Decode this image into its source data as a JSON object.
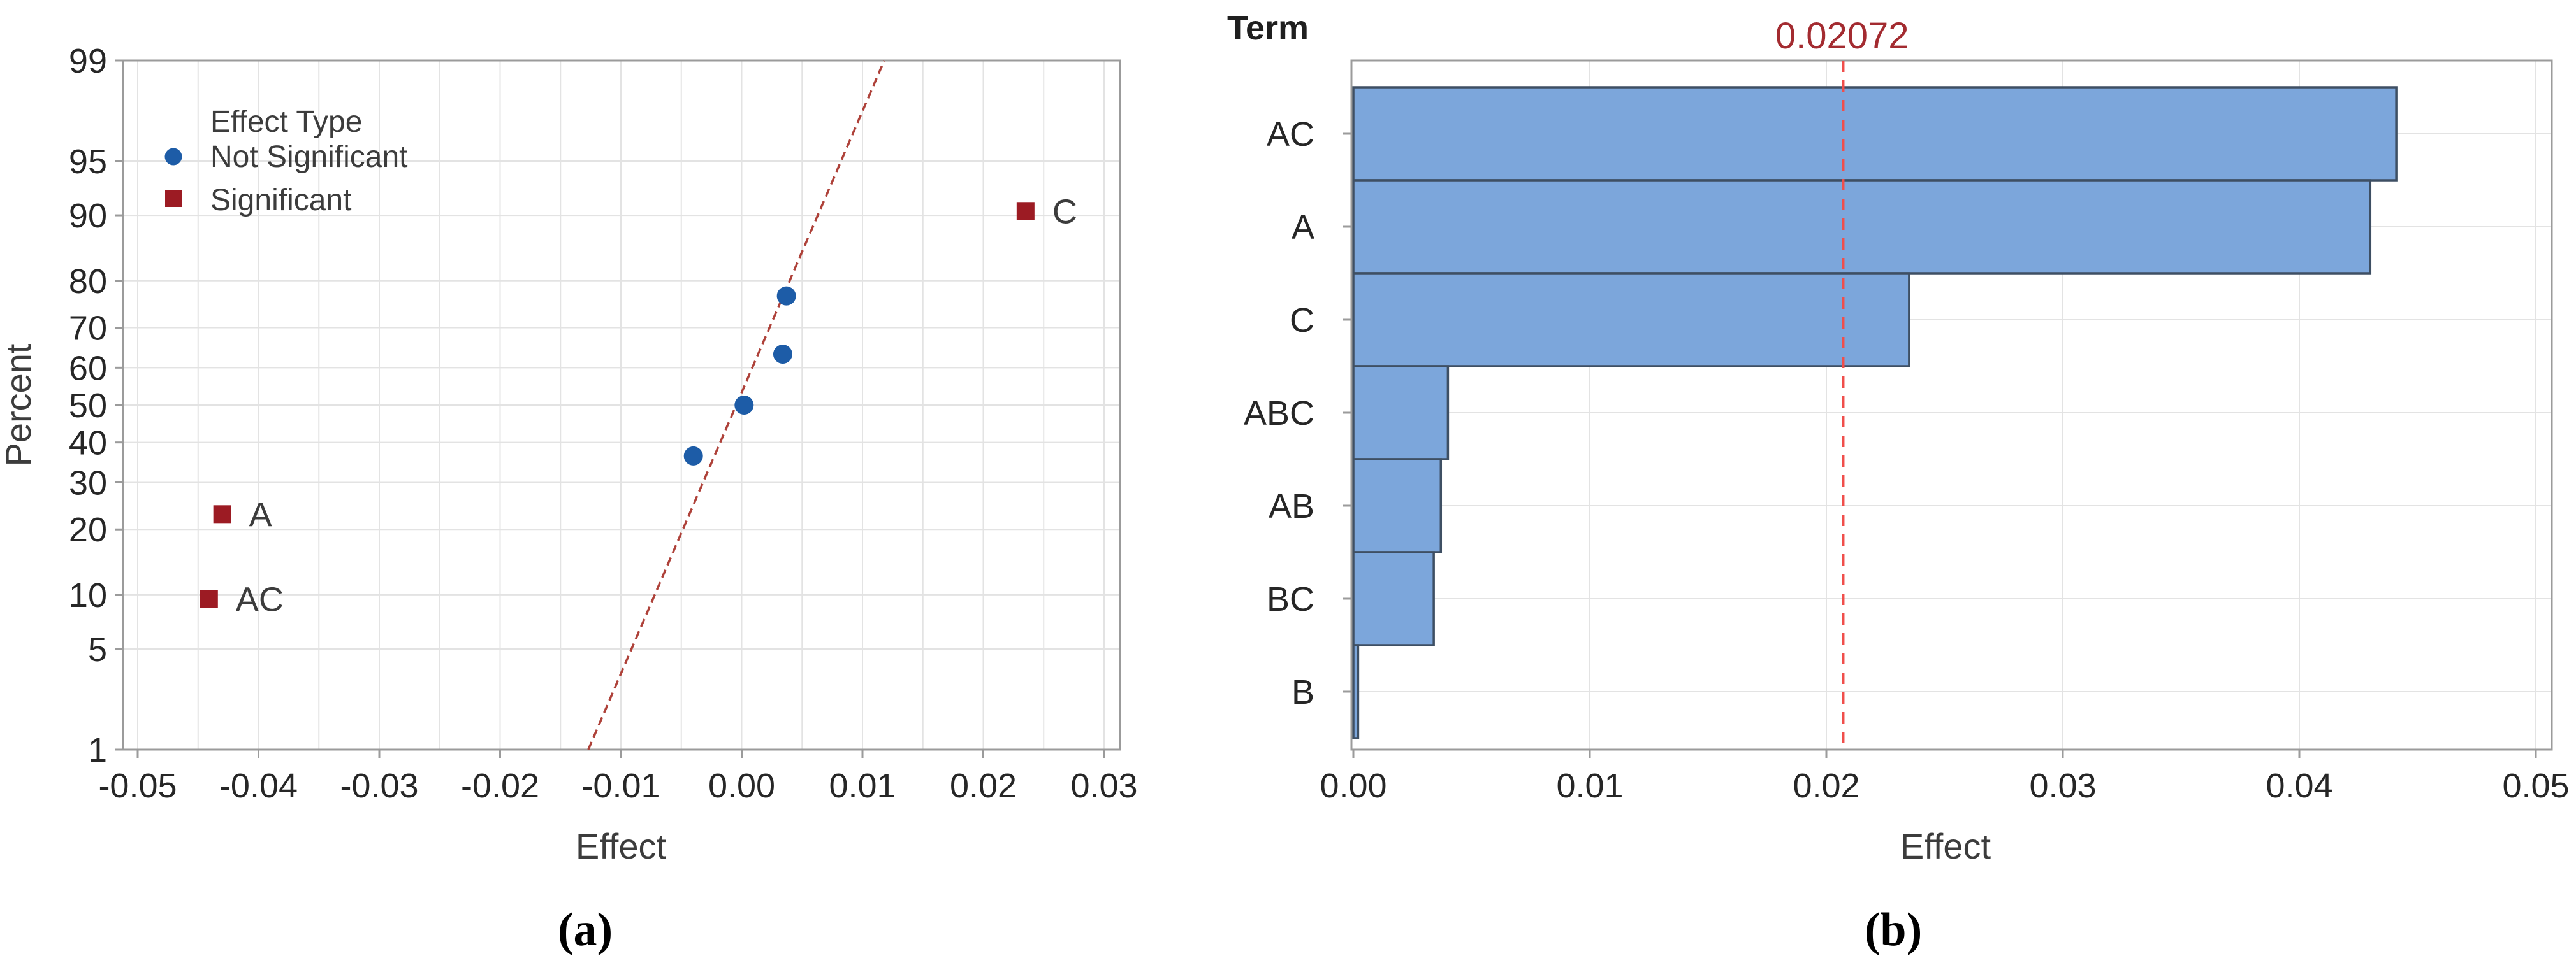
{
  "figure": {
    "background": "#FFFFFF",
    "panels": [
      {
        "id": "a",
        "caption": "(a)"
      },
      {
        "id": "b",
        "caption": "(b)"
      }
    ]
  },
  "colors": {
    "grid": "#E3E3E3",
    "plot_border": "#9B9B9B",
    "tick_text": "#262626",
    "axis_title_text": "#3C3C3C",
    "legend_text": "#3C3C3C",
    "point_label_text": "#3C3C3C",
    "not_significant_marker": "#1D5CA7",
    "significant_marker": "#9C1B23"
  },
  "chart_data": [
    {
      "type": "scatter",
      "subtype": "normal-probability-plot-of-effects",
      "xlabel": "Effect",
      "ylabel": "Percent",
      "xlim": [
        -0.05,
        0.03
      ],
      "xticks": [
        -0.05,
        -0.04,
        -0.03,
        -0.02,
        -0.01,
        0.0,
        0.01,
        0.02,
        0.03
      ],
      "xtick_labels": [
        "-0.05",
        "-0.04",
        "-0.03",
        "-0.02",
        "-0.01",
        "0.00",
        "0.01",
        "0.02",
        "0.03"
      ],
      "x_minor_grid_step": 0.005,
      "yscale": "normal-probability",
      "yticks": [
        1,
        5,
        10,
        20,
        30,
        40,
        50,
        60,
        70,
        80,
        90,
        95,
        99
      ],
      "grid": true,
      "legend": {
        "title": "Effect Type",
        "position": "top-left",
        "entries": [
          {
            "label": "Not Significant",
            "marker": "circle",
            "color": "#1D5CA7"
          },
          {
            "label": "Significant",
            "marker": "square",
            "color": "#9C1B23"
          }
        ]
      },
      "points": [
        {
          "label": "AC",
          "effect": -0.0441,
          "percent": 9.5,
          "type": "significant"
        },
        {
          "label": "A",
          "effect": -0.043,
          "percent": 23.0,
          "type": "significant"
        },
        {
          "label": "",
          "effect": -0.004,
          "percent": 36.5,
          "type": "not-significant"
        },
        {
          "label": "",
          "effect": 0.0002,
          "percent": 50.0,
          "type": "not-significant"
        },
        {
          "label": "",
          "effect": 0.0034,
          "percent": 63.5,
          "type": "not-significant"
        },
        {
          "label": "",
          "effect": 0.0037,
          "percent": 77.0,
          "type": "not-significant"
        },
        {
          "label": "C",
          "effect": 0.0235,
          "percent": 90.5,
          "type": "significant"
        }
      ],
      "fit_line": {
        "effect_at_percent_1": -0.0127,
        "effect_at_percent_99": 0.0118,
        "color": "#AE4139",
        "style": "dashed"
      },
      "caption": "(a)"
    },
    {
      "type": "bar",
      "subtype": "pareto-chart-of-effects",
      "orientation": "horizontal",
      "corner_label": "Term",
      "xlabel": "Effect",
      "categories": [
        "AC",
        "A",
        "C",
        "ABC",
        "AB",
        "BC",
        "B"
      ],
      "values": [
        0.0441,
        0.043,
        0.0235,
        0.004,
        0.0037,
        0.0034,
        0.0002
      ],
      "xlim": [
        0,
        0.05
      ],
      "xticks": [
        0,
        0.01,
        0.02,
        0.03,
        0.04,
        0.05
      ],
      "xtick_labels": [
        "0.00",
        "0.01",
        "0.02",
        "0.03",
        "0.04",
        "0.05"
      ],
      "grid": true,
      "bar_fill": "#7CA6DB",
      "bar_border": "#3E4F63",
      "reference_line": {
        "value": 0.02072,
        "label": "0.02072",
        "color": "#F04E4B",
        "label_color": "#A32B30",
        "style": "dashed"
      },
      "caption": "(b)"
    }
  ]
}
